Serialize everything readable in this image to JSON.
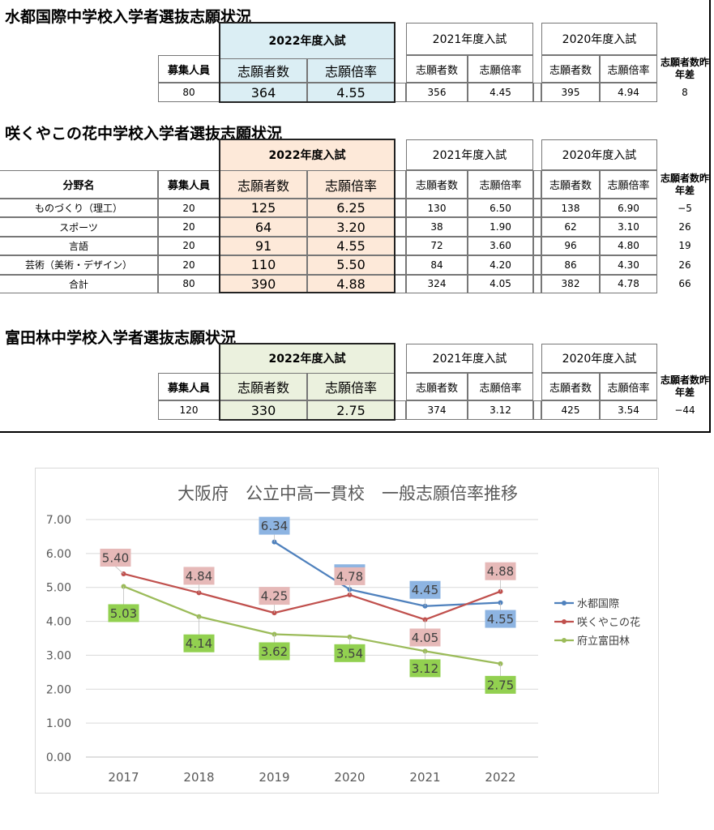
{
  "tables": {
    "mizuto": {
      "title": "水都国際中学校入学者選抜志願状況",
      "year_2022": "2022年度入試",
      "year_2021": "2021年度入試",
      "year_2020": "2020年度入試",
      "h_capacity": "募集人員",
      "h_applicants": "志願者数",
      "h_ratio": "志願倍率",
      "h_diff": "志願者数昨年差",
      "row": {
        "capacity": "80",
        "a2022": "364",
        "r2022": "4.55",
        "a2021": "356",
        "r2021": "4.45",
        "a2020": "395",
        "r2020": "4.94",
        "diff": "8"
      }
    },
    "sakuya": {
      "title": "咲くやこの花中学校入学者選抜志願状況",
      "year_2022": "2022年度入試",
      "year_2021": "2021年度入試",
      "year_2020": "2020年度入試",
      "h_field": "分野名",
      "h_capacity": "募集人員",
      "h_applicants": "志願者数",
      "h_ratio": "志願倍率",
      "h_diff": "志願者数昨年差",
      "rows": [
        {
          "field": "ものづくり（理工）",
          "capacity": "20",
          "a2022": "125",
          "r2022": "6.25",
          "a2021": "130",
          "r2021": "6.50",
          "a2020": "138",
          "r2020": "6.90",
          "diff": "−5"
        },
        {
          "field": "スポーツ",
          "capacity": "20",
          "a2022": "64",
          "r2022": "3.20",
          "a2021": "38",
          "r2021": "1.90",
          "a2020": "62",
          "r2020": "3.10",
          "diff": "26"
        },
        {
          "field": "言語",
          "capacity": "20",
          "a2022": "91",
          "r2022": "4.55",
          "a2021": "72",
          "r2021": "3.60",
          "a2020": "96",
          "r2020": "4.80",
          "diff": "19"
        },
        {
          "field": "芸術（美術・デザイン）",
          "capacity": "20",
          "a2022": "110",
          "r2022": "5.50",
          "a2021": "84",
          "r2021": "4.20",
          "a2020": "86",
          "r2020": "4.30",
          "diff": "26"
        },
        {
          "field": "合計",
          "capacity": "80",
          "a2022": "390",
          "r2022": "4.88",
          "a2021": "324",
          "r2021": "4.05",
          "a2020": "382",
          "r2020": "4.78",
          "diff": "66"
        }
      ]
    },
    "tondabayashi": {
      "title": "富田林中学校入学者選抜志願状況",
      "year_2022": "2022年度入試",
      "year_2021": "2021年度入試",
      "year_2020": "2020年度入試",
      "h_capacity": "募集人員",
      "h_applicants": "志願者数",
      "h_ratio": "志願倍率",
      "h_diff": "志願者数昨年差",
      "row": {
        "capacity": "120",
        "a2022": "330",
        "r2022": "2.75",
        "a2021": "374",
        "r2021": "3.12",
        "a2020": "425",
        "r2020": "3.54",
        "diff": "−44"
      }
    },
    "colors": {
      "blue_fill": "#dbeef4",
      "orange_fill": "#fde9d9",
      "green_fill": "#ebf1de"
    }
  },
  "chart_data": {
    "type": "line",
    "title": "大阪府　公立中高一貫校　一般志願倍率推移",
    "categories": [
      "2017",
      "2018",
      "2019",
      "2020",
      "2021",
      "2022"
    ],
    "ylim": [
      0,
      7
    ],
    "yticks": [
      "0.00",
      "1.00",
      "2.00",
      "3.00",
      "4.00",
      "5.00",
      "6.00",
      "7.00"
    ],
    "grid": true,
    "legend": "right",
    "series": [
      {
        "name": "水都国際",
        "color": "#4f81bd",
        "label_fill": "#8db4e2",
        "values": [
          null,
          null,
          6.34,
          4.94,
          4.45,
          4.55
        ],
        "labels": [
          "",
          "",
          "6.34",
          "4.94",
          "4.45",
          "4.55"
        ]
      },
      {
        "name": "咲くやこの花",
        "color": "#c0504d",
        "label_fill": "#e6b9b8",
        "values": [
          5.4,
          4.84,
          4.25,
          4.78,
          4.05,
          4.88
        ],
        "labels": [
          "5.40",
          "4.84",
          "4.25",
          "4.78",
          "4.05",
          "4.88"
        ]
      },
      {
        "name": "府立富田林",
        "color": "#9bbb59",
        "label_fill": "#92d050",
        "values": [
          5.03,
          4.14,
          3.62,
          3.54,
          3.12,
          2.75
        ],
        "labels": [
          "5.03",
          "4.14",
          "3.62",
          "3.54",
          "3.12",
          "2.75"
        ]
      }
    ]
  }
}
